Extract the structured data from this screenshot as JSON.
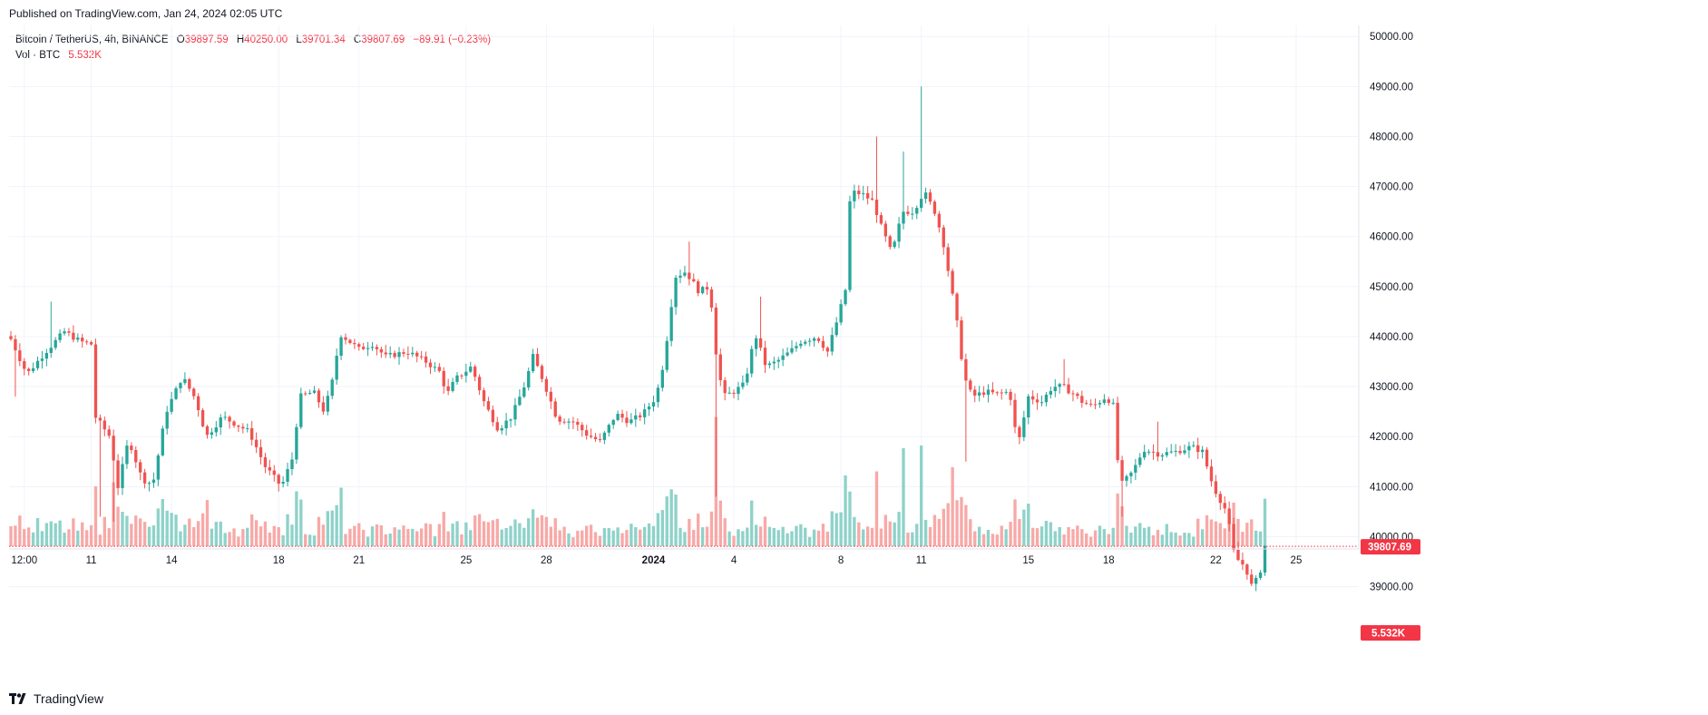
{
  "header": {
    "published": "Published on TradingView.com, Jan 24, 2024 02:05 UTC"
  },
  "legend": {
    "symbol": "Bitcoin / TetherUS, 4h, BINANCE",
    "o_label": "O",
    "o_value": "39897.59",
    "h_label": "H",
    "h_value": "40250.00",
    "l_label": "L",
    "l_value": "39701.34",
    "c_label": "C",
    "c_value": "39807.69",
    "change": "−89.91 (−0.23%)",
    "vol_label": "Vol · BTC",
    "vol_value": "5.532K"
  },
  "brand": {
    "name": "TradingView"
  },
  "colors": {
    "up": "#26a69a",
    "down": "#ef5350",
    "up_vol": "#8ed2c9",
    "down_vol": "#f7a9a7",
    "last": "#f23645"
  },
  "chart_data": {
    "type": "candlestick",
    "symbol": "BTCUSDT",
    "interval": "4h",
    "exchange": "BINANCE",
    "y_ticks": [
      "50000.00",
      "49000.00",
      "48000.00",
      "47000.00",
      "46000.00",
      "45000.00",
      "44000.00",
      "43000.00",
      "42000.00",
      "41000.00",
      "40000.00",
      "39000.00"
    ],
    "ylim": [
      38000,
      50300
    ],
    "x_ticks": [
      {
        "label": "12:00",
        "day": 8.5
      },
      {
        "label": "11",
        "day": 11
      },
      {
        "label": "14",
        "day": 14
      },
      {
        "label": "18",
        "day": 18
      },
      {
        "label": "21",
        "day": 21
      },
      {
        "label": "25",
        "day": 25
      },
      {
        "label": "28",
        "day": 28
      },
      {
        "label": "2024",
        "day": 32,
        "bold": true
      },
      {
        "label": "4",
        "day": 35
      },
      {
        "label": "8",
        "day": 39
      },
      {
        "label": "11",
        "day": 42
      },
      {
        "label": "15",
        "day": 46
      },
      {
        "label": "18",
        "day": 49
      },
      {
        "label": "22",
        "day": 53
      },
      {
        "label": "25",
        "day": 56
      }
    ],
    "last_price": "39807.69",
    "last_price_value": 39807.69,
    "last_volume": "5.532K",
    "anchors": [
      [
        8.0,
        43950
      ],
      [
        8.6,
        43250
      ],
      [
        9.3,
        43700
      ],
      [
        10.0,
        44100
      ],
      [
        10.6,
        43900
      ],
      [
        11.0,
        43850
      ],
      [
        11.15,
        42400
      ],
      [
        11.7,
        42000
      ],
      [
        12.0,
        41000
      ],
      [
        12.4,
        41950
      ],
      [
        12.9,
        41150
      ],
      [
        13.3,
        41050
      ],
      [
        13.8,
        42500
      ],
      [
        14.4,
        43200
      ],
      [
        14.9,
        42750
      ],
      [
        15.3,
        42000
      ],
      [
        15.9,
        42400
      ],
      [
        16.4,
        42250
      ],
      [
        16.9,
        42100
      ],
      [
        17.5,
        41400
      ],
      [
        18.1,
        41000
      ],
      [
        18.5,
        41550
      ],
      [
        18.8,
        42800
      ],
      [
        19.3,
        42900
      ],
      [
        19.7,
        42500
      ],
      [
        20.0,
        43100
      ],
      [
        20.3,
        44050
      ],
      [
        21.0,
        43750
      ],
      [
        21.5,
        43850
      ],
      [
        22.0,
        43600
      ],
      [
        22.8,
        43700
      ],
      [
        23.5,
        43500
      ],
      [
        24.0,
        43300
      ],
      [
        24.3,
        42850
      ],
      [
        24.6,
        43150
      ],
      [
        25.2,
        43400
      ],
      [
        25.7,
        42650
      ],
      [
        26.2,
        42150
      ],
      [
        26.7,
        42400
      ],
      [
        27.2,
        43050
      ],
      [
        27.5,
        43600
      ],
      [
        27.9,
        43100
      ],
      [
        28.4,
        42350
      ],
      [
        29.0,
        42300
      ],
      [
        29.5,
        42050
      ],
      [
        30.0,
        41900
      ],
      [
        30.6,
        42450
      ],
      [
        31.1,
        42300
      ],
      [
        31.6,
        42450
      ],
      [
        32.1,
        42800
      ],
      [
        32.4,
        43550
      ],
      [
        32.8,
        45200
      ],
      [
        33.2,
        45300
      ],
      [
        33.7,
        44900
      ],
      [
        34.1,
        45000
      ],
      [
        34.35,
        43600
      ],
      [
        34.6,
        42800
      ],
      [
        35.0,
        42900
      ],
      [
        35.4,
        43050
      ],
      [
        35.8,
        44050
      ],
      [
        36.2,
        43400
      ],
      [
        36.6,
        43500
      ],
      [
        37.1,
        43700
      ],
      [
        37.5,
        43900
      ],
      [
        38.1,
        44000
      ],
      [
        38.5,
        43700
      ],
      [
        38.9,
        44400
      ],
      [
        39.2,
        45000
      ],
      [
        39.35,
        46900
      ],
      [
        39.8,
        46850
      ],
      [
        40.2,
        46700
      ],
      [
        40.5,
        46200
      ],
      [
        40.9,
        45650
      ],
      [
        41.3,
        46500
      ],
      [
        41.7,
        46500
      ],
      [
        42.1,
        46900
      ],
      [
        42.5,
        46500
      ],
      [
        42.8,
        45950
      ],
      [
        43.3,
        44400
      ],
      [
        43.6,
        43200
      ],
      [
        43.9,
        42800
      ],
      [
        44.4,
        42900
      ],
      [
        44.8,
        42850
      ],
      [
        45.3,
        42900
      ],
      [
        45.6,
        41800
      ],
      [
        46.0,
        42800
      ],
      [
        46.5,
        42700
      ],
      [
        46.9,
        43000
      ],
      [
        47.3,
        43000
      ],
      [
        47.7,
        42850
      ],
      [
        48.0,
        42700
      ],
      [
        48.4,
        42600
      ],
      [
        48.9,
        42800
      ],
      [
        49.2,
        42600
      ],
      [
        49.4,
        41000
      ],
      [
        49.9,
        41300
      ],
      [
        50.3,
        41750
      ],
      [
        50.9,
        41650
      ],
      [
        51.5,
        41700
      ],
      [
        52.1,
        41800
      ],
      [
        52.5,
        41700
      ],
      [
        52.9,
        41000
      ],
      [
        53.4,
        40500
      ],
      [
        53.7,
        39600
      ],
      [
        54.1,
        39400
      ],
      [
        54.35,
        39000
      ],
      [
        54.6,
        39200
      ],
      [
        54.9,
        39808
      ]
    ],
    "spikes": [
      {
        "day": 11.3,
        "low": 40400
      },
      {
        "day": 11.9,
        "low": 40300
      },
      {
        "day": 34.4,
        "low": 40800
      },
      {
        "day": 43.7,
        "low": 41500
      },
      {
        "day": 49.55,
        "low": 40400
      },
      {
        "day": 8.2,
        "low": 42800
      },
      {
        "day": 9.5,
        "high": 44700
      },
      {
        "day": 40.25,
        "high": 48000
      },
      {
        "day": 41.3,
        "high": 47700
      },
      {
        "day": 42.0,
        "high": 49000
      },
      {
        "day": 33.3,
        "high": 45900
      },
      {
        "day": 36.0,
        "high": 44800
      },
      {
        "day": 47.3,
        "high": 43550
      },
      {
        "day": 50.9,
        "high": 42300
      }
    ],
    "vol_spikes": [
      {
        "day": 34.4,
        "level": 0.95
      },
      {
        "day": 41.3,
        "level": 0.72
      },
      {
        "day": 42.0,
        "level": 0.74
      },
      {
        "day": 43.15,
        "level": 0.58
      },
      {
        "day": 40.25,
        "level": 0.55
      },
      {
        "day": 39.2,
        "level": 0.52
      },
      {
        "day": 11.15,
        "level": 0.44
      },
      {
        "day": 11.9,
        "level": 0.47
      },
      {
        "day": 20.3,
        "level": 0.43
      },
      {
        "day": 32.8,
        "level": 0.38
      },
      {
        "day": 15.4,
        "level": 0.34
      }
    ]
  }
}
